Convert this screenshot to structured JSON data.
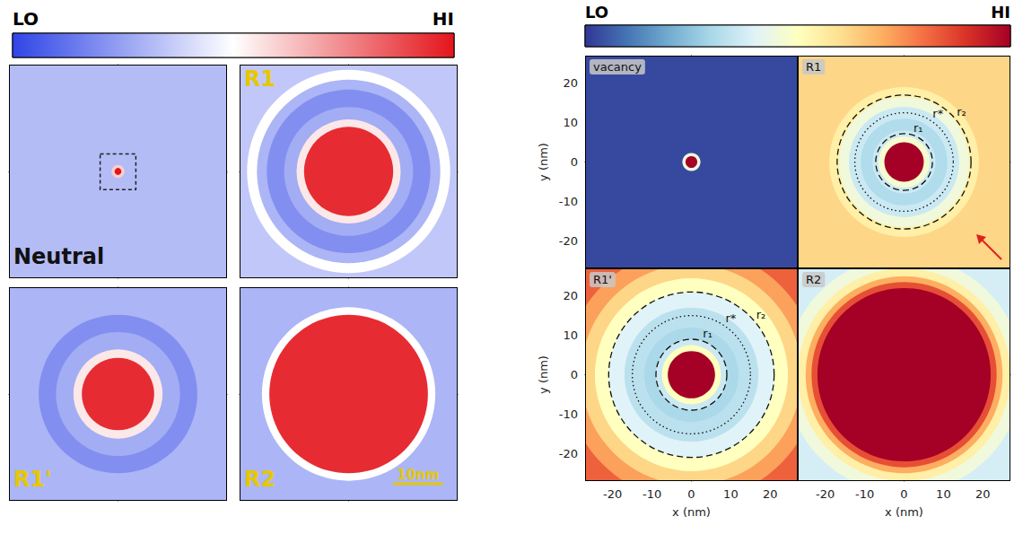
{
  "chart_data": [
    {
      "type": "heatmap",
      "colorbar": {
        "range": [
          0,
          1
        ],
        "ticks": [
          {
            "value": 0,
            "label": "LO"
          },
          {
            "value": 1,
            "label": "HI"
          }
        ]
      },
      "panels": [
        {
          "title": "Neutral",
          "xlim": [
            -22,
            22
          ],
          "ylim": [
            -22,
            22
          ],
          "center": [
            0,
            0
          ],
          "tick_labels": false,
          "background": 0.32,
          "rings": [
            {
              "r": 1.3,
              "level": 0.6
            },
            {
              "r": 0.7,
              "level": 1
            }
          ],
          "box_halfwidth": 3.6
        },
        {
          "title": "R1",
          "xlim": [
            -22,
            22
          ],
          "ylim": [
            -22,
            22
          ],
          "center": [
            0,
            0
          ],
          "tick_labels": false,
          "background": 0.35,
          "rings": [
            {
              "r": 20.5,
              "level": 0.5
            },
            {
              "r": 18.5,
              "level": 0.3
            },
            {
              "r": 16.5,
              "level": 0.2
            },
            {
              "r": 13,
              "level": 0.28
            },
            {
              "r": 10.5,
              "level": 0.55
            },
            {
              "r": 9,
              "level": 0.95
            }
          ]
        },
        {
          "title": "R1'",
          "xlim": [
            -22,
            22
          ],
          "ylim": [
            -22,
            22
          ],
          "center": [
            0,
            0
          ],
          "tick_labels": false,
          "background": 0.3,
          "rings": [
            {
              "r": 16,
              "level": 0.2
            },
            {
              "r": 12.5,
              "level": 0.28
            },
            {
              "r": 9,
              "level": 0.55
            },
            {
              "r": 7.3,
              "level": 0.95
            }
          ]
        },
        {
          "title": "R2",
          "xlim": [
            -22,
            22
          ],
          "ylim": [
            -22,
            22
          ],
          "center": [
            0,
            0
          ],
          "tick_labels": false,
          "background": 0.3,
          "rings": [
            {
              "r": 17.5,
              "level": 0.5
            },
            {
              "r": 16,
              "level": 0.95
            }
          ],
          "scale_bar": {
            "length": 10,
            "label": "10nm"
          }
        }
      ]
    },
    {
      "type": "heatmap",
      "colorbar": {
        "range": [
          0,
          1
        ],
        "ticks": [
          {
            "value": 0,
            "label": "LO"
          },
          {
            "value": 1,
            "label": "HI"
          }
        ]
      },
      "panels": [
        {
          "title": "vacancy",
          "xlim": [
            -27,
            27
          ],
          "ylim": [
            -27,
            27
          ],
          "center": [
            0,
            0
          ],
          "tick_labels": "y",
          "yticks": [
            -20,
            -10,
            0,
            10,
            20
          ],
          "ylabel": "y (nm)",
          "background": 0.03,
          "rings": [
            {
              "r": 2.3,
              "level": 0.45
            },
            {
              "r": 1.5,
              "level": 1
            }
          ]
        },
        {
          "title": "R1",
          "xlim": [
            -27,
            27
          ],
          "ylim": [
            -27,
            27
          ],
          "center": [
            0,
            0
          ],
          "tick_labels": false,
          "background": 0.62,
          "rings": [
            {
              "r": 19,
              "level": 0.55
            },
            {
              "r": 16.5,
              "level": 0.45
            },
            {
              "r": 14,
              "level": 0.36
            },
            {
              "r": 11,
              "level": 0.31
            },
            {
              "r": 8,
              "level": 0.36
            },
            {
              "r": 6.5,
              "level": 0.47
            },
            {
              "r": 5,
              "level": 1
            }
          ],
          "guides": [
            {
              "r": 7.2,
              "label": "r₁",
              "line_style": "dashed"
            },
            {
              "r": 12.5,
              "label": "r*",
              "line_style": "dotted"
            },
            {
              "r": 17,
              "label": "r₂",
              "line_style": "dashed"
            }
          ]
        },
        {
          "title": "R1'",
          "xlim": [
            -27,
            27
          ],
          "ylim": [
            -27,
            27
          ],
          "center": [
            0,
            0
          ],
          "tick_labels": true,
          "xticks": [
            -20,
            -10,
            0,
            10,
            20
          ],
          "yticks": [
            -20,
            -10,
            0,
            10,
            20
          ],
          "xlabel": "x (nm)",
          "ylabel": "y (nm)",
          "background": 0.82,
          "rings": [
            {
              "r": 32,
              "level": 0.72
            },
            {
              "r": 28,
              "level": 0.62
            },
            {
              "r": 24.5,
              "level": 0.5
            },
            {
              "r": 21,
              "level": 0.4
            },
            {
              "r": 17,
              "level": 0.33
            },
            {
              "r": 12,
              "level": 0.3
            },
            {
              "r": 9,
              "level": 0.36
            },
            {
              "r": 7.5,
              "level": 0.5
            },
            {
              "r": 6,
              "level": 1
            }
          ],
          "guides": [
            {
              "r": 9,
              "label": "r₁",
              "line_style": "dashed"
            },
            {
              "r": 15,
              "label": "r*",
              "line_style": "dotted"
            },
            {
              "r": 21,
              "label": "r₂",
              "line_style": "dashed"
            }
          ]
        },
        {
          "title": "R2",
          "xlim": [
            -27,
            27
          ],
          "ylim": [
            -27,
            27
          ],
          "center": [
            0,
            0
          ],
          "tick_labels": "x",
          "xticks": [
            -20,
            -10,
            0,
            10,
            20
          ],
          "xlabel": "x (nm)",
          "background": 0.38,
          "rings": [
            {
              "r": 30,
              "level": 0.45
            },
            {
              "r": 27,
              "level": 0.55
            },
            {
              "r": 25,
              "level": 0.7
            },
            {
              "r": 23.5,
              "level": 0.85
            },
            {
              "r": 22,
              "level": 1
            }
          ]
        }
      ]
    }
  ]
}
